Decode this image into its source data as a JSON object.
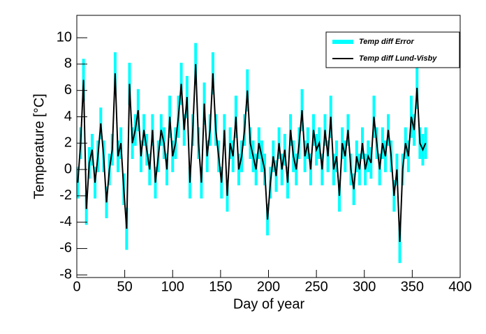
{
  "chart_data": {
    "type": "line",
    "x_label": "Day of year",
    "y_label": "Temperature [°C]",
    "xlim": [
      0,
      400
    ],
    "xticks": [
      0,
      50,
      100,
      150,
      200,
      250,
      300,
      350,
      400
    ],
    "ylim": [
      -8.2,
      11.7
    ],
    "yticks": [
      -8,
      -6,
      -4,
      -2,
      0,
      2,
      4,
      6,
      8,
      10
    ],
    "legend": "top-right",
    "x": [
      1,
      4,
      7,
      10,
      13,
      16,
      19,
      22,
      25,
      28,
      31,
      34,
      37,
      40,
      43,
      46,
      49,
      52,
      55,
      58,
      61,
      64,
      67,
      70,
      73,
      76,
      79,
      82,
      85,
      88,
      91,
      94,
      97,
      100,
      103,
      106,
      109,
      112,
      115,
      118,
      121,
      124,
      127,
      130,
      133,
      136,
      139,
      142,
      145,
      148,
      151,
      154,
      157,
      160,
      163,
      166,
      169,
      172,
      175,
      178,
      181,
      184,
      187,
      190,
      193,
      196,
      199,
      202,
      205,
      208,
      211,
      214,
      217,
      220,
      223,
      226,
      229,
      232,
      235,
      238,
      241,
      244,
      247,
      250,
      253,
      256,
      259,
      262,
      265,
      268,
      271,
      274,
      277,
      280,
      283,
      286,
      289,
      292,
      295,
      298,
      301,
      304,
      307,
      310,
      313,
      316,
      319,
      322,
      325,
      328,
      331,
      334,
      337,
      340,
      343,
      346,
      349,
      352,
      355,
      358,
      361,
      364
    ],
    "series": [
      {
        "name": "Temp diff Error",
        "color": "#00ffff",
        "values": [
          1.2,
          1.2,
          1.6,
          1.2,
          1.2,
          1.2,
          1.2,
          1.2,
          1.2,
          1.2,
          1.2,
          1.2,
          1.2,
          1.6,
          1.2,
          1.2,
          1.2,
          1.6,
          1.6,
          1.2,
          1.2,
          1.6,
          1.2,
          1.2,
          1.2,
          1.2,
          1.2,
          1.2,
          1.2,
          1.2,
          1.2,
          1.2,
          1.6,
          1.2,
          1.2,
          1.6,
          1.6,
          1.2,
          1.6,
          1.2,
          1.2,
          1.6,
          1.2,
          1.2,
          1.6,
          1.2,
          1.2,
          1.6,
          1.2,
          1.2,
          1.2,
          1.2,
          1.2,
          1.2,
          1.2,
          1.6,
          1.2,
          1.2,
          1.2,
          1.6,
          1.2,
          1.2,
          1.2,
          1.2,
          1.2,
          1.2,
          1.2,
          1.2,
          1.2,
          1.2,
          1.2,
          1.2,
          1.2,
          1.2,
          1.2,
          1.2,
          1.2,
          1.2,
          1.6,
          1.2,
          1.2,
          1.2,
          1.2,
          1.2,
          1.2,
          1.2,
          1.2,
          1.2,
          1.6,
          1.2,
          1.2,
          1.2,
          1.2,
          1.2,
          1.2,
          1.2,
          1.2,
          1.2,
          1.2,
          1.2,
          1.2,
          1.2,
          1.2,
          1.6,
          1.2,
          1.2,
          1.2,
          1.2,
          1.2,
          1.2,
          1.2,
          1.2,
          1.6,
          1.2,
          1.2,
          1.2,
          1.6,
          1.2,
          1.6,
          1.2,
          1.2,
          1.2
        ]
      },
      {
        "name": "Temp diff Lund-Visby",
        "color": "#000000",
        "values": [
          -1,
          2,
          6.8,
          -3,
          0.5,
          1.5,
          -1,
          1,
          3.5,
          1,
          -2.5,
          0,
          1.5,
          7.3,
          1,
          2,
          -1.5,
          -4.5,
          6.5,
          2,
          3,
          4.5,
          1,
          3,
          1.5,
          0,
          3,
          -1,
          1,
          3,
          2,
          0,
          4,
          1,
          2,
          4,
          6.5,
          3,
          5.5,
          -1,
          3,
          8,
          2,
          -1,
          5,
          1,
          3,
          7.3,
          3,
          1,
          -1,
          3,
          -2,
          2,
          1,
          4,
          0,
          1,
          3,
          6,
          2,
          1,
          0,
          2,
          1,
          0,
          -3.8,
          -1,
          1,
          -0.5,
          2,
          0,
          1.5,
          -1,
          3,
          1,
          0,
          2,
          4.5,
          1,
          2,
          0,
          3,
          1.5,
          2,
          0,
          3,
          1,
          4,
          0,
          1,
          -2,
          2,
          1,
          3,
          0,
          -1.5,
          1,
          0,
          2,
          0,
          1,
          0.5,
          4,
          2,
          0,
          2,
          1,
          3,
          1,
          -2,
          0,
          -5.5,
          0,
          2,
          1,
          4,
          3,
          6.2,
          2,
          1.5,
          2
        ]
      }
    ]
  }
}
